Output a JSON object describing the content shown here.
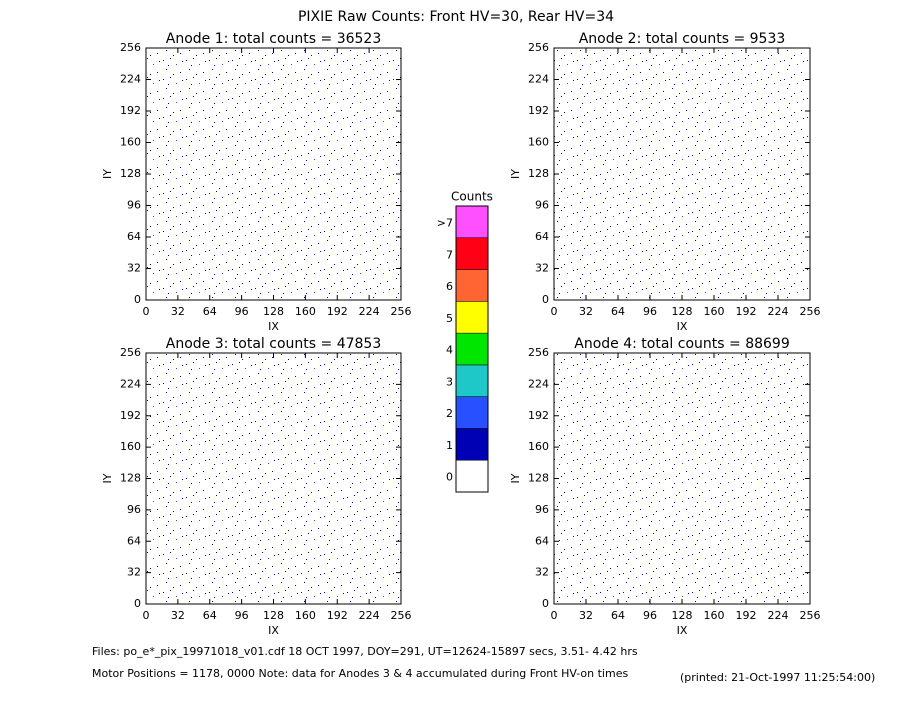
{
  "title": "PIXIE Raw Counts:  Front HV=30, Rear HV=34",
  "chart_data": [
    {
      "type": "heatmap",
      "title": "Anode 1: total counts = 36523",
      "xlabel": "IX",
      "ylabel": "IY",
      "xlim": [
        0,
        256
      ],
      "ylim": [
        0,
        256
      ],
      "xticks": [
        0,
        32,
        64,
        96,
        128,
        160,
        192,
        224,
        256
      ],
      "yticks": [
        0,
        32,
        64,
        96,
        128,
        160,
        192,
        224,
        256
      ]
    },
    {
      "type": "heatmap",
      "title": "Anode 2: total counts = 9533",
      "xlabel": "IX",
      "ylabel": "IY",
      "xlim": [
        0,
        256
      ],
      "ylim": [
        0,
        256
      ],
      "xticks": [
        0,
        32,
        64,
        96,
        128,
        160,
        192,
        224,
        256
      ],
      "yticks": [
        0,
        32,
        64,
        96,
        128,
        160,
        192,
        224,
        256
      ]
    },
    {
      "type": "heatmap",
      "title": "Anode 3: total counts = 47853",
      "xlabel": "IX",
      "ylabel": "IY",
      "xlim": [
        0,
        256
      ],
      "ylim": [
        0,
        256
      ],
      "xticks": [
        0,
        32,
        64,
        96,
        128,
        160,
        192,
        224,
        256
      ],
      "yticks": [
        0,
        32,
        64,
        96,
        128,
        160,
        192,
        224,
        256
      ]
    },
    {
      "type": "heatmap",
      "title": "Anode 4: total counts = 88699",
      "xlabel": "IX",
      "ylabel": "IY",
      "xlim": [
        0,
        256
      ],
      "ylim": [
        0,
        256
      ],
      "xticks": [
        0,
        32,
        64,
        96,
        128,
        160,
        192,
        224,
        256
      ],
      "yticks": [
        0,
        32,
        64,
        96,
        128,
        160,
        192,
        224,
        256
      ]
    },
    {
      "type": "colorbar",
      "title": "Counts",
      "ticks": [
        0,
        1,
        2,
        3,
        4,
        5,
        6,
        7,
        {
          "value": 8,
          "label": ">7"
        }
      ],
      "colors": [
        "#ffffff",
        "#0000b4",
        "#2850ff",
        "#1ec8c8",
        "#00e600",
        "#ffff00",
        "#ff6432",
        "#ff0014",
        "#ff50ff"
      ]
    }
  ],
  "footer": {
    "files": "Files: po_e*_pix_19971018_v01.cdf    18 OCT 1997, DOY=291, UT=12624-15897 secs,  3.51- 4.42 hrs",
    "motor": "Motor Positions = 1178, 0000   Note: data for Anodes 3 & 4 accumulated during Front HV-on times",
    "printed": "(printed: 21-Oct-1997 11:25:54:00)"
  }
}
